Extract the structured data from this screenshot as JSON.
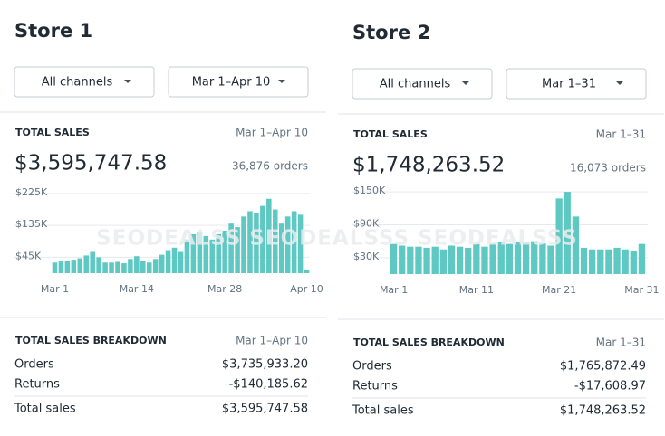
{
  "stores": [
    {
      "title": "Store 1",
      "channel_filter": "All channels",
      "date_filter": "Mar 1–Apr 10",
      "total_sales": {
        "label": "TOTAL SALES",
        "date": "Mar 1–Apr 10",
        "amount": "$3,595,747.58",
        "orders": "36,876 orders"
      },
      "breakdown": {
        "title": "TOTAL SALES BREAKDOWN",
        "date": "Mar 1–Apr 10",
        "rows": [
          [
            "Orders",
            "$3,735,933.20"
          ],
          [
            "Returns",
            "-$140,185.62"
          ],
          [
            "Total sales",
            "$3,595,747.58"
          ]
        ]
      }
    },
    {
      "title": "Store 2",
      "channel_filter": "All channels",
      "date_filter": "Mar 1–31",
      "total_sales": {
        "label": "TOTAL SALES",
        "date": "Mar 1–31",
        "amount": "$1,748,263.52",
        "orders": "16,073 orders"
      },
      "breakdown": {
        "title": "TOTAL SALES BREAKDOWN",
        "date": "Mar 1–31",
        "rows": [
          [
            "Orders",
            "$1,765,872.49"
          ],
          [
            "Returns",
            "-$17,608.97"
          ],
          [
            "Total sales",
            "$1,748,263.52"
          ]
        ]
      }
    }
  ],
  "chart_data": [
    {
      "type": "bar",
      "color": "#5ec8c3",
      "grid": true,
      "categories": [
        "Mar 1",
        null,
        null,
        null,
        null,
        null,
        null,
        null,
        null,
        null,
        null,
        null,
        null,
        "Mar 14",
        null,
        null,
        null,
        null,
        null,
        null,
        null,
        null,
        null,
        null,
        null,
        null,
        null,
        "Mar 28",
        null,
        null,
        null,
        null,
        null,
        null,
        null,
        null,
        null,
        null,
        null,
        null,
        "Apr 10"
      ],
      "values": [
        30000,
        33000,
        35000,
        38000,
        42000,
        50000,
        60000,
        45000,
        30000,
        30000,
        32000,
        28000,
        40000,
        48000,
        35000,
        30000,
        40000,
        52000,
        65000,
        72000,
        60000,
        95000,
        110000,
        115000,
        105000,
        95000,
        110000,
        120000,
        140000,
        130000,
        160000,
        175000,
        170000,
        190000,
        210000,
        180000,
        140000,
        160000,
        175000,
        165000,
        10000
      ],
      "ylim": [
        0,
        240000
      ],
      "yticks": [
        {
          "value": 45000,
          "label": "$45K"
        },
        {
          "value": 135000,
          "label": "$135K"
        },
        {
          "value": 225000,
          "label": "$225K"
        }
      ]
    },
    {
      "type": "bar",
      "color": "#5ec8c3",
      "grid": true,
      "categories": [
        "Mar 1",
        null,
        null,
        null,
        null,
        null,
        null,
        null,
        null,
        null,
        "Mar 11",
        null,
        null,
        null,
        null,
        null,
        null,
        null,
        null,
        null,
        "Mar 21",
        null,
        null,
        null,
        null,
        null,
        null,
        null,
        null,
        null,
        "Mar 31"
      ],
      "values": [
        55000,
        52000,
        50000,
        50000,
        48000,
        50000,
        45000,
        52000,
        50000,
        48000,
        55000,
        50000,
        55000,
        58000,
        55000,
        58000,
        58000,
        60000,
        56000,
        52000,
        138000,
        150000,
        105000,
        48000,
        45000,
        45000,
        45000,
        48000,
        45000,
        43000,
        55000
      ],
      "ylim": [
        0,
        165000
      ],
      "yticks": [
        {
          "value": 30000,
          "label": "$30K"
        },
        {
          "value": 90000,
          "label": "$90K"
        },
        {
          "value": 150000,
          "label": "$150K"
        }
      ]
    }
  ],
  "watermark": "SEODEALSS  SEODEALSSS  SEODEALSSS"
}
